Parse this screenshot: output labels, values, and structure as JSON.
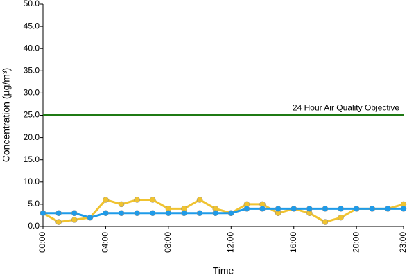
{
  "chart_data": {
    "type": "line",
    "x_label": "Time",
    "y_label": "Concentration (µg/m³)",
    "categories": [
      "00:00",
      null,
      null,
      null,
      "04:00",
      null,
      null,
      null,
      "08:00",
      null,
      null,
      null,
      "12:00",
      null,
      null,
      null,
      "16:00",
      null,
      null,
      null,
      "20:00",
      null,
      null,
      "23:00"
    ],
    "series": [
      {
        "color": "#f0c330",
        "values": [
          3,
          1,
          1.5,
          2,
          6,
          5,
          6,
          6,
          4,
          4,
          6,
          4,
          3,
          5,
          5,
          3,
          4,
          3,
          1,
          2,
          4,
          4,
          4,
          5
        ]
      },
      {
        "color": "#1e9be9",
        "values": [
          3,
          3,
          3,
          2,
          3,
          3,
          3,
          3,
          3,
          3,
          3,
          3,
          3,
          4,
          4,
          4,
          4,
          4,
          4,
          4,
          4,
          4,
          4,
          4
        ]
      }
    ],
    "reference_line": {
      "value": 25,
      "label": "24 Hour Air Quality Objective",
      "color": "#1f7a14"
    },
    "ylim": [
      0,
      50
    ],
    "yticks": [
      {
        "value": 0,
        "label": "0.0"
      },
      {
        "value": 5,
        "label": "5.0"
      },
      {
        "value": 10,
        "label": "10.0"
      },
      {
        "value": 15,
        "label": "15.0"
      },
      {
        "value": 20,
        "label": "20.0"
      },
      {
        "value": 25,
        "label": "25.0"
      },
      {
        "value": 30,
        "label": "30.0"
      },
      {
        "value": 35,
        "label": "35.0"
      },
      {
        "value": 40,
        "label": "40.0"
      },
      {
        "value": 45,
        "label": "45.0"
      },
      {
        "value": 50,
        "label": "50.0"
      }
    ]
  }
}
